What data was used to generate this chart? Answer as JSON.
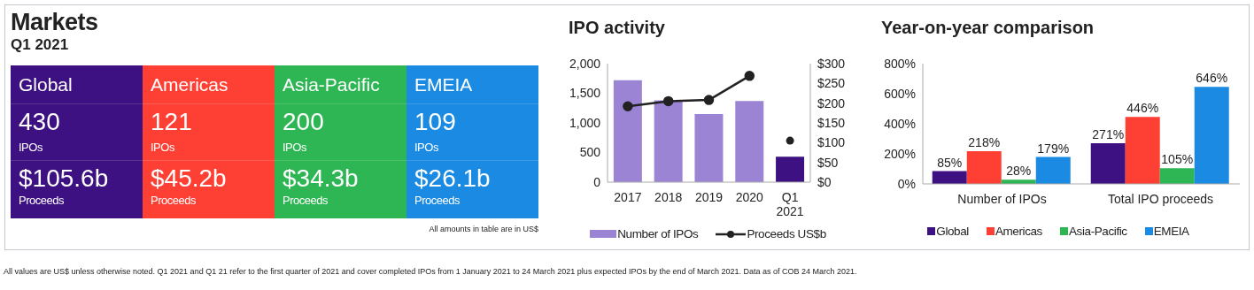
{
  "chart_data": [
    {
      "type": "other",
      "title": "Markets",
      "subtitle": "Q1 2021",
      "categories": [
        "Global",
        "Americas",
        "Asia-Pacific",
        "EMEIA"
      ],
      "series": [
        {
          "name": "IPOs",
          "colors": [
            "#3d1181",
            "#fe4034",
            "#2db653",
            "#1b8ae2"
          ],
          "values": [
            430,
            121,
            200,
            109
          ],
          "value_labels": [
            "430",
            "121",
            "200",
            "109"
          ]
        },
        {
          "name": "Proceeds",
          "colors": [
            "#3d1181",
            "#fe4034",
            "#2db653",
            "#1b8ae2"
          ],
          "values": [
            105.6,
            45.2,
            34.3,
            26.1
          ],
          "value_labels": [
            "$105.6b",
            "$45.2b",
            "$34.3b",
            "$26.1b"
          ]
        }
      ],
      "annotations": [
        "All amounts in table are in US$",
        "All values are US$ unless otherwise noted. Q1 2021 and Q1 21 refer to the first quarter of 2021 and cover completed IPOs from 1 January 2021 to 24 March 2021 plus expected IPOs by the end of March 2021. Data as of COB 24 March 2021."
      ]
    },
    {
      "type": "bar",
      "title": "IPO activity",
      "categories": [
        "2017",
        "2018",
        "2019",
        "2020",
        "Q1 2021"
      ],
      "series": [
        {
          "name": "Number of IPOs",
          "type": "bar",
          "color": "#9b84d4",
          "colors": [
            "#9b84d4",
            "#9b84d4",
            "#9b84d4",
            "#9b84d4",
            "#3d1181"
          ],
          "values": [
            1720,
            1380,
            1150,
            1370,
            430
          ]
        },
        {
          "name": "Proceeds US$b",
          "type": "line",
          "axis": "y2",
          "color": "#222222",
          "values": [
            192,
            205,
            208,
            269,
            null
          ]
        },
        {
          "type": "scatter",
          "axis": "y2",
          "color": "#222222",
          "values": [
            null,
            null,
            null,
            null,
            105
          ]
        }
      ],
      "ylim": [
        0,
        2000
      ],
      "yticks": [
        0,
        500,
        {
          "value": 1000,
          "label": "1,000"
        },
        {
          "value": 1500,
          "label": "1,500"
        },
        {
          "value": 2000,
          "label": "2,000"
        }
      ],
      "y2lim": [
        0,
        300
      ],
      "y2ticks": [
        {
          "value": 0,
          "label": "$0"
        },
        {
          "value": 50,
          "label": "$50"
        },
        {
          "value": 100,
          "label": "$100"
        },
        {
          "value": 150,
          "label": "$150"
        },
        {
          "value": 200,
          "label": "$200"
        },
        {
          "value": 250,
          "label": "$250"
        },
        {
          "value": 300,
          "label": "$300"
        }
      ],
      "marker": "circle",
      "legend": "bottom"
    },
    {
      "type": "bar",
      "title": "Year-on-year comparison",
      "categories": [
        "Number of IPOs",
        "Total IPO proceeds"
      ],
      "series": [
        {
          "name": "Global",
          "color": "#3d1181",
          "values": [
            85,
            271
          ],
          "value_labels": [
            "85%",
            "271%"
          ]
        },
        {
          "name": "Americas",
          "color": "#fe4034",
          "values": [
            218,
            446
          ],
          "value_labels": [
            "218%",
            "446%"
          ]
        },
        {
          "name": "Asia-Pacific",
          "color": "#2db653",
          "values": [
            28,
            105
          ],
          "value_labels": [
            "28%",
            "105%"
          ]
        },
        {
          "name": "EMEIA",
          "color": "#1b8ae2",
          "values": [
            179,
            646
          ],
          "value_labels": [
            "179%",
            "646%"
          ]
        }
      ],
      "ylim": [
        0,
        800
      ],
      "yticks": [
        {
          "value": 0,
          "label": "0%"
        },
        {
          "value": 200,
          "label": "200%"
        },
        {
          "value": 400,
          "label": "400%"
        },
        {
          "value": 600,
          "label": "600%"
        },
        {
          "value": 800,
          "label": "800%"
        }
      ],
      "legend": "bottom"
    }
  ]
}
